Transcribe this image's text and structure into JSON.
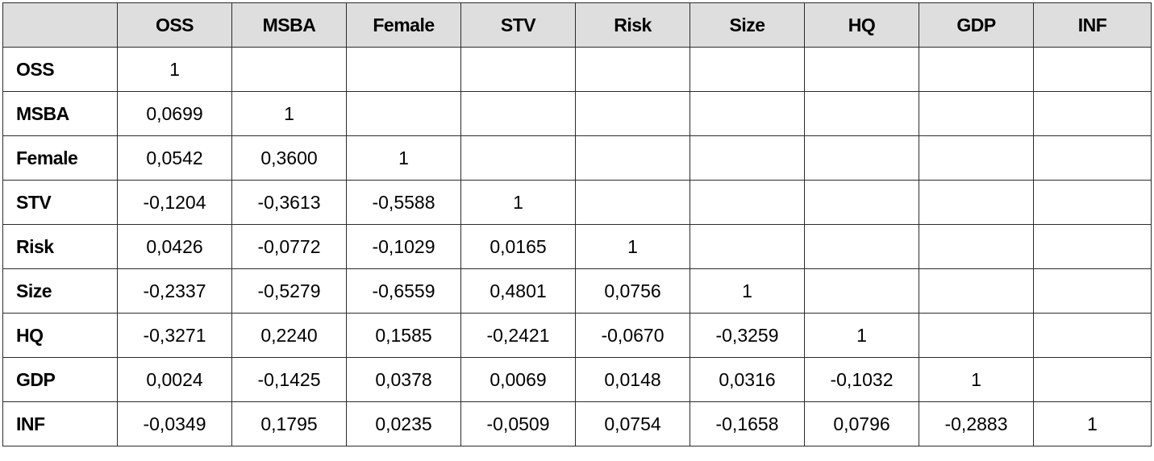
{
  "table": {
    "columns": [
      "OSS",
      "MSBA",
      "Female",
      "STV",
      "Risk",
      "Size",
      "HQ",
      "GDP",
      "INF"
    ],
    "rows": [
      {
        "label": "OSS",
        "cells": [
          "1",
          "",
          "",
          "",
          "",
          "",
          "",
          "",
          ""
        ]
      },
      {
        "label": "MSBA",
        "cells": [
          "0,0699",
          "1",
          "",
          "",
          "",
          "",
          "",
          "",
          ""
        ]
      },
      {
        "label": "Female",
        "cells": [
          "0,0542",
          "0,3600",
          "1",
          "",
          "",
          "",
          "",
          "",
          ""
        ]
      },
      {
        "label": "STV",
        "cells": [
          "-0,1204",
          "-0,3613",
          "-0,5588",
          "1",
          "",
          "",
          "",
          "",
          ""
        ]
      },
      {
        "label": "Risk",
        "cells": [
          "0,0426",
          "-0,0772",
          "-0,1029",
          "0,0165",
          "1",
          "",
          "",
          "",
          ""
        ]
      },
      {
        "label": "Size",
        "cells": [
          "-0,2337",
          "-0,5279",
          "-0,6559",
          "0,4801",
          "0,0756",
          "1",
          "",
          "",
          ""
        ]
      },
      {
        "label": "HQ",
        "cells": [
          "-0,3271",
          "0,2240",
          "0,1585",
          "-0,2421",
          "-0,0670",
          "-0,3259",
          "1",
          "",
          ""
        ]
      },
      {
        "label": "GDP",
        "cells": [
          "0,0024",
          "-0,1425",
          "0,0378",
          "0,0069",
          "0,0148",
          "0,0316",
          "-0,1032",
          "1",
          ""
        ]
      },
      {
        "label": "INF",
        "cells": [
          "-0,0349",
          "0,1795",
          "0,0235",
          "-0,0509",
          "0,0754",
          "-0,1658",
          "0,0796",
          "-0,2883",
          "1"
        ]
      }
    ]
  },
  "colors": {
    "header_bg": "#dedede",
    "border": "#2b2b2b",
    "text": "#000000"
  }
}
